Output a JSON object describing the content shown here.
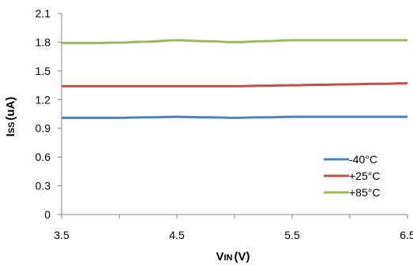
{
  "chart_data": {
    "type": "line",
    "title": "",
    "xlabel": {
      "main": "V",
      "sub": "IN",
      "unit": "(V)"
    },
    "ylabel": {
      "main": "I",
      "sub": "SS",
      "unit": "(uA)"
    },
    "xlim": [
      3.5,
      6.5
    ],
    "ylim": [
      0,
      2.1
    ],
    "xticks": [
      "3.5",
      "4.5",
      "5.5",
      "6.5"
    ],
    "yticks": [
      "0",
      "0.3",
      "0.6",
      "0.9",
      "1.2",
      "1.5",
      "1.8",
      "2.1"
    ],
    "grid": false,
    "legend_position": "bottom-right",
    "x": [
      3.5,
      3.75,
      4.0,
      4.25,
      4.5,
      4.75,
      5.0,
      5.25,
      5.5,
      5.75,
      6.0,
      6.25,
      6.5
    ],
    "series": [
      {
        "name": "-40°C",
        "color": "#4f81bd",
        "values": [
          1.01,
          1.01,
          1.01,
          1.015,
          1.02,
          1.015,
          1.01,
          1.015,
          1.02,
          1.02,
          1.02,
          1.02,
          1.02
        ]
      },
      {
        "name": "+25°C",
        "color": "#c0504d",
        "values": [
          1.34,
          1.34,
          1.34,
          1.34,
          1.34,
          1.34,
          1.34,
          1.345,
          1.35,
          1.355,
          1.36,
          1.365,
          1.37
        ]
      },
      {
        "name": "+85°C",
        "color": "#9bbb59",
        "values": [
          1.79,
          1.79,
          1.795,
          1.805,
          1.82,
          1.81,
          1.8,
          1.81,
          1.82,
          1.82,
          1.82,
          1.82,
          1.82
        ]
      }
    ]
  }
}
